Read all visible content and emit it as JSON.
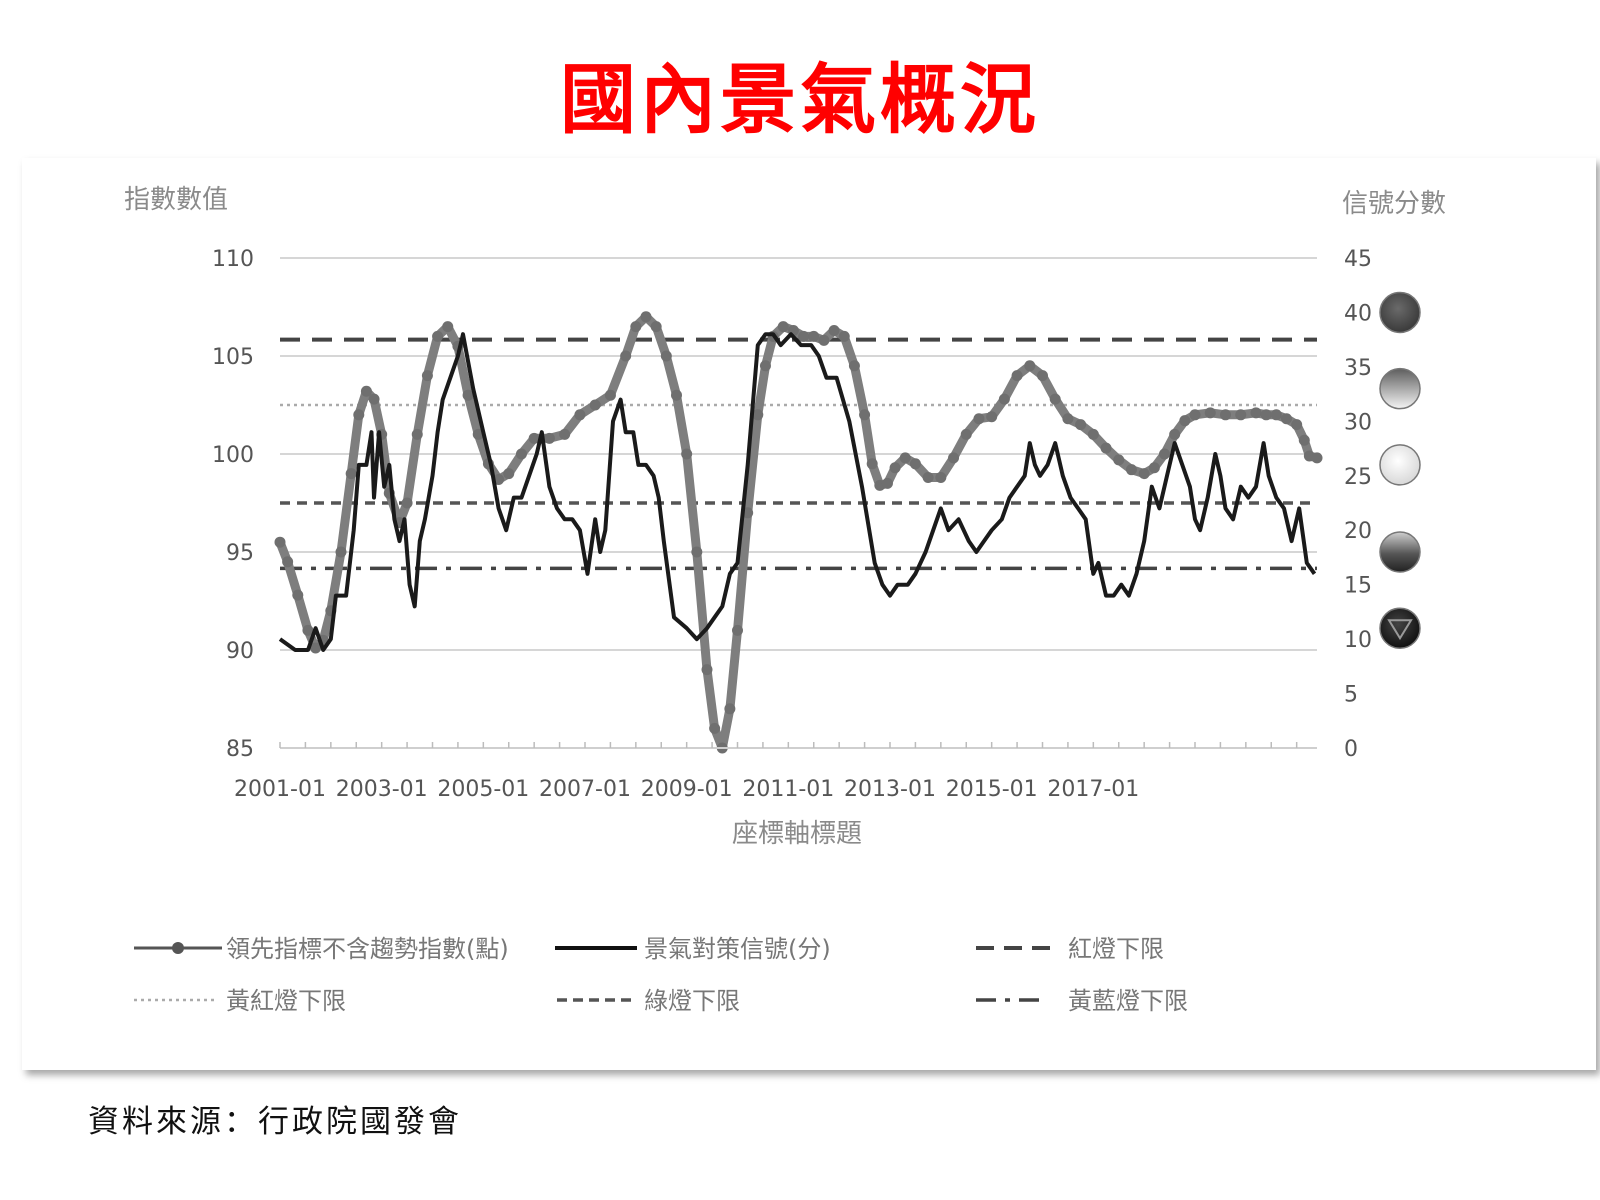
{
  "title": "國內景氣概況",
  "source": "資料來源：行政院國發會",
  "chart_data": {
    "type": "line",
    "left_axis_title": "指數數值",
    "right_axis_title": "信號分數",
    "xlabel": "座標軸標題",
    "ylim_left": [
      85,
      110
    ],
    "ylim_right": [
      0,
      45
    ],
    "yticks_left": [
      "110",
      "105",
      "100",
      "95",
      "90",
      "85"
    ],
    "yticks_right": [
      "45",
      "40",
      "35",
      "30",
      "25",
      "20",
      "15",
      "10",
      "5",
      "0"
    ],
    "xticks": [
      "2001-01",
      "2003-01",
      "2005-01",
      "2007-01",
      "2009-01",
      "2011-01",
      "2013-01",
      "2015-01",
      "2017-01"
    ],
    "grid": true,
    "legend_position": "bottom",
    "signal_lights": [
      {
        "score": 40,
        "color": "#4a4a4a",
        "style": "solid-dark"
      },
      {
        "score": 33,
        "color": "#7a7a7a",
        "style": "gradient-dark-top"
      },
      {
        "score": 26,
        "color": "#f0f0f0",
        "style": "light"
      },
      {
        "score": 18,
        "color": "#6a6a6a",
        "style": "gradient-mid"
      },
      {
        "score": 11,
        "color": "#1e1e1e",
        "style": "dark-triangle"
      }
    ],
    "reference_lines": [
      {
        "name": "紅燈下限",
        "value": 37.5,
        "style": "long-dash"
      },
      {
        "name": "黃紅燈下限",
        "value": 31.5,
        "style": "dotted"
      },
      {
        "name": "綠燈下限",
        "value": 22.5,
        "style": "short-dash"
      },
      {
        "name": "黃藍燈下限",
        "value": 16.5,
        "style": "dash-dot"
      }
    ],
    "series": [
      {
        "name": "領先指標不含趨勢指數(點)",
        "axis": "left",
        "style": "gray-dotted-marker",
        "points": [
          [
            2001.0,
            95.5
          ],
          [
            2001.15,
            94.5
          ],
          [
            2001.35,
            92.8
          ],
          [
            2001.55,
            91.0
          ],
          [
            2001.7,
            90.1
          ],
          [
            2001.85,
            90.5
          ],
          [
            2002.0,
            92.0
          ],
          [
            2002.2,
            95.0
          ],
          [
            2002.4,
            99.0
          ],
          [
            2002.55,
            102.0
          ],
          [
            2002.7,
            103.2
          ],
          [
            2002.85,
            102.8
          ],
          [
            2003.0,
            101.0
          ],
          [
            2003.15,
            98.0
          ],
          [
            2003.35,
            96.5
          ],
          [
            2003.5,
            97.5
          ],
          [
            2003.7,
            101.0
          ],
          [
            2003.9,
            104.0
          ],
          [
            2004.1,
            106.0
          ],
          [
            2004.3,
            106.5
          ],
          [
            2004.5,
            105.5
          ],
          [
            2004.7,
            103.0
          ],
          [
            2004.9,
            101.0
          ],
          [
            2005.1,
            99.5
          ],
          [
            2005.3,
            98.7
          ],
          [
            2005.5,
            99.0
          ],
          [
            2005.75,
            100.0
          ],
          [
            2006.0,
            100.8
          ],
          [
            2006.3,
            100.8
          ],
          [
            2006.6,
            101.0
          ],
          [
            2006.9,
            102.0
          ],
          [
            2007.2,
            102.5
          ],
          [
            2007.5,
            103.0
          ],
          [
            2007.8,
            105.0
          ],
          [
            2008.0,
            106.5
          ],
          [
            2008.2,
            107.0
          ],
          [
            2008.4,
            106.5
          ],
          [
            2008.6,
            105.0
          ],
          [
            2008.8,
            103.0
          ],
          [
            2009.0,
            100.0
          ],
          [
            2009.2,
            95.0
          ],
          [
            2009.4,
            89.0
          ],
          [
            2009.55,
            86.0
          ],
          [
            2009.7,
            85.0
          ],
          [
            2009.85,
            87.0
          ],
          [
            2010.0,
            91.0
          ],
          [
            2010.2,
            97.0
          ],
          [
            2010.4,
            102.0
          ],
          [
            2010.55,
            104.5
          ],
          [
            2010.7,
            106.0
          ],
          [
            2010.9,
            106.5
          ],
          [
            2011.1,
            106.3
          ],
          [
            2011.3,
            106.0
          ],
          [
            2011.5,
            106.0
          ],
          [
            2011.7,
            105.8
          ],
          [
            2011.9,
            106.3
          ],
          [
            2012.1,
            106.0
          ],
          [
            2012.3,
            104.5
          ],
          [
            2012.5,
            102.0
          ],
          [
            2012.65,
            99.5
          ],
          [
            2012.8,
            98.4
          ],
          [
            2012.95,
            98.5
          ],
          [
            2013.1,
            99.3
          ],
          [
            2013.3,
            99.8
          ],
          [
            2013.5,
            99.5
          ],
          [
            2013.75,
            98.8
          ],
          [
            2014.0,
            98.8
          ],
          [
            2014.25,
            99.8
          ],
          [
            2014.5,
            101.0
          ],
          [
            2014.75,
            101.8
          ],
          [
            2015.0,
            101.9
          ],
          [
            2015.25,
            102.8
          ],
          [
            2015.5,
            104.0
          ],
          [
            2015.75,
            104.5
          ],
          [
            2016.0,
            104.0
          ],
          [
            2016.25,
            102.8
          ],
          [
            2016.5,
            101.8
          ],
          [
            2016.75,
            101.5
          ],
          [
            2017.0,
            101.0
          ],
          [
            2017.25,
            100.3
          ],
          [
            2017.5,
            99.7
          ],
          [
            2017.75,
            99.2
          ],
          [
            2018.0,
            99.0
          ],
          [
            2018.2,
            99.3
          ],
          [
            2018.4,
            100.0
          ],
          [
            2018.6,
            101.0
          ],
          [
            2018.8,
            101.7
          ],
          [
            2019.0,
            102.0
          ],
          [
            2019.3,
            102.1
          ],
          [
            2019.6,
            102.0
          ],
          [
            2019.9,
            102.0
          ],
          [
            2020.2,
            102.1
          ],
          [
            2020.4,
            102.0
          ],
          [
            2020.6,
            102.0
          ],
          [
            2020.8,
            101.8
          ],
          [
            2021.0,
            101.5
          ],
          [
            2021.15,
            100.7
          ],
          [
            2021.25,
            99.9
          ],
          [
            2021.4,
            99.8
          ]
        ]
      },
      {
        "name": "景氣對策信號(分)",
        "axis": "right",
        "style": "black-solid",
        "points": [
          [
            2001.0,
            10
          ],
          [
            2001.3,
            9
          ],
          [
            2001.55,
            9
          ],
          [
            2001.7,
            11
          ],
          [
            2001.85,
            9
          ],
          [
            2002.0,
            10
          ],
          [
            2002.1,
            14
          ],
          [
            2002.3,
            14
          ],
          [
            2002.45,
            20
          ],
          [
            2002.55,
            26
          ],
          [
            2002.7,
            26
          ],
          [
            2002.8,
            29
          ],
          [
            2002.85,
            23
          ],
          [
            2002.95,
            29
          ],
          [
            2003.05,
            24
          ],
          [
            2003.15,
            26
          ],
          [
            2003.25,
            21
          ],
          [
            2003.35,
            19
          ],
          [
            2003.45,
            21
          ],
          [
            2003.55,
            15
          ],
          [
            2003.65,
            13
          ],
          [
            2003.75,
            19
          ],
          [
            2003.85,
            21
          ],
          [
            2004.0,
            25
          ],
          [
            2004.1,
            29
          ],
          [
            2004.2,
            32
          ],
          [
            2004.35,
            34
          ],
          [
            2004.5,
            36
          ],
          [
            2004.6,
            38
          ],
          [
            2004.8,
            33
          ],
          [
            2005.0,
            29
          ],
          [
            2005.15,
            26
          ],
          [
            2005.3,
            22
          ],
          [
            2005.45,
            20
          ],
          [
            2005.6,
            23
          ],
          [
            2005.75,
            23
          ],
          [
            2005.9,
            25
          ],
          [
            2006.05,
            27
          ],
          [
            2006.15,
            29
          ],
          [
            2006.3,
            24
          ],
          [
            2006.45,
            22
          ],
          [
            2006.6,
            21
          ],
          [
            2006.75,
            21
          ],
          [
            2006.9,
            20
          ],
          [
            2007.05,
            16
          ],
          [
            2007.2,
            21
          ],
          [
            2007.3,
            18
          ],
          [
            2007.4,
            20
          ],
          [
            2007.55,
            30
          ],
          [
            2007.7,
            32
          ],
          [
            2007.8,
            29
          ],
          [
            2007.95,
            29
          ],
          [
            2008.05,
            26
          ],
          [
            2008.2,
            26
          ],
          [
            2008.35,
            25
          ],
          [
            2008.45,
            23
          ],
          [
            2008.55,
            19
          ],
          [
            2008.75,
            12
          ],
          [
            2009.0,
            11
          ],
          [
            2009.2,
            10
          ],
          [
            2009.4,
            11
          ],
          [
            2009.55,
            12
          ],
          [
            2009.7,
            13
          ],
          [
            2009.85,
            16
          ],
          [
            2010.0,
            17
          ],
          [
            2010.2,
            26
          ],
          [
            2010.4,
            37
          ],
          [
            2010.55,
            38
          ],
          [
            2010.7,
            38
          ],
          [
            2010.85,
            37
          ],
          [
            2011.05,
            38
          ],
          [
            2011.25,
            37
          ],
          [
            2011.45,
            37
          ],
          [
            2011.6,
            36
          ],
          [
            2011.75,
            34
          ],
          [
            2011.95,
            34
          ],
          [
            2012.2,
            30
          ],
          [
            2012.45,
            24
          ],
          [
            2012.7,
            17
          ],
          [
            2012.85,
            15
          ],
          [
            2013.0,
            14
          ],
          [
            2013.15,
            15
          ],
          [
            2013.35,
            15
          ],
          [
            2013.5,
            16
          ],
          [
            2013.7,
            18
          ],
          [
            2013.85,
            20
          ],
          [
            2014.0,
            22
          ],
          [
            2014.15,
            20
          ],
          [
            2014.35,
            21
          ],
          [
            2014.55,
            19
          ],
          [
            2014.7,
            18
          ],
          [
            2014.85,
            19
          ],
          [
            2015.0,
            20
          ],
          [
            2015.2,
            21
          ],
          [
            2015.35,
            23
          ],
          [
            2015.5,
            24
          ],
          [
            2015.65,
            25
          ],
          [
            2015.75,
            28
          ],
          [
            2015.85,
            26
          ],
          [
            2015.95,
            25
          ],
          [
            2016.1,
            26
          ],
          [
            2016.25,
            28
          ],
          [
            2016.4,
            25
          ],
          [
            2016.55,
            23
          ],
          [
            2016.7,
            22
          ],
          [
            2016.85,
            21
          ],
          [
            2017.0,
            16
          ],
          [
            2017.1,
            17
          ],
          [
            2017.25,
            14
          ],
          [
            2017.4,
            14
          ],
          [
            2017.55,
            15
          ],
          [
            2017.7,
            14
          ],
          [
            2017.85,
            16
          ],
          [
            2018.0,
            19
          ],
          [
            2018.15,
            24
          ],
          [
            2018.3,
            22
          ],
          [
            2018.45,
            25
          ],
          [
            2018.6,
            28
          ],
          [
            2018.75,
            26
          ],
          [
            2018.9,
            24
          ],
          [
            2019.0,
            21
          ],
          [
            2019.1,
            20
          ],
          [
            2019.25,
            23
          ],
          [
            2019.4,
            27
          ],
          [
            2019.5,
            25
          ],
          [
            2019.6,
            22
          ],
          [
            2019.75,
            21
          ],
          [
            2019.9,
            24
          ],
          [
            2020.05,
            23
          ],
          [
            2020.2,
            24
          ],
          [
            2020.35,
            28
          ],
          [
            2020.45,
            25
          ],
          [
            2020.6,
            23
          ],
          [
            2020.75,
            22
          ],
          [
            2020.9,
            19
          ],
          [
            2021.05,
            22
          ],
          [
            2021.2,
            17
          ],
          [
            2021.35,
            16
          ]
        ]
      }
    ]
  },
  "legend": {
    "row1": [
      "領先指標不含趨勢指數(點)",
      "景氣對策信號(分)",
      "紅燈下限"
    ],
    "row2": [
      "黃紅燈下限",
      "綠燈下限",
      "黃藍燈下限"
    ]
  }
}
